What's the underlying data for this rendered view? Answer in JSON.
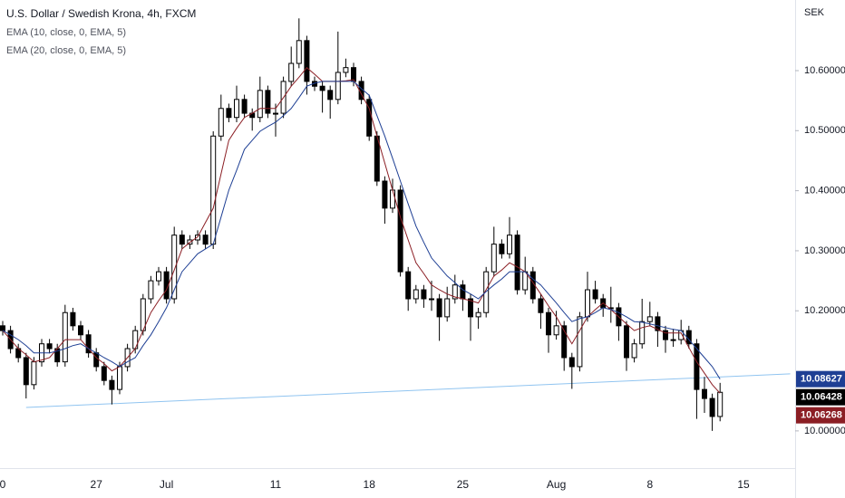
{
  "chart_data": {
    "type": "candlestick",
    "title": "U.S. Dollar / Swedish Krona, 4h, FXCM",
    "currency": "SEK",
    "up_color": "#ffffff",
    "down_color": "#000000",
    "wick_color": "#000000",
    "close_label_color": "#000000",
    "categories": [
      "0",
      null,
      null,
      null,
      null,
      null,
      null,
      null,
      null,
      null,
      null,
      null,
      "27",
      null,
      null,
      null,
      null,
      null,
      null,
      null,
      null,
      "Jul",
      null,
      null,
      null,
      null,
      null,
      null,
      null,
      null,
      null,
      null,
      null,
      null,
      null,
      "11",
      null,
      null,
      null,
      null,
      null,
      null,
      null,
      null,
      null,
      null,
      null,
      "18",
      null,
      null,
      null,
      null,
      null,
      null,
      null,
      null,
      null,
      null,
      null,
      "25",
      null,
      null,
      null,
      null,
      null,
      null,
      null,
      null,
      null,
      null,
      null,
      "Aug",
      null,
      null,
      null,
      null,
      null,
      null,
      null,
      null,
      null,
      null,
      null,
      "8",
      null,
      null,
      null,
      null,
      null,
      null,
      null,
      null,
      null,
      null,
      null,
      "15",
      null,
      null,
      null,
      null,
      null,
      null
    ],
    "open": [
      10.175,
      10.167,
      10.137,
      10.122,
      10.077,
      10.115,
      10.145,
      10.137,
      10.115,
      10.197,
      10.175,
      10.16,
      10.13,
      10.107,
      10.084,
      10.069,
      10.107,
      10.137,
      10.167,
      10.22,
      10.25,
      10.265,
      10.22,
      10.326,
      10.311,
      10.318,
      10.326,
      10.311,
      10.491,
      10.537,
      10.522,
      10.552,
      10.529,
      10.522,
      10.567,
      10.529,
      10.529,
      10.582,
      10.612,
      10.65,
      10.582,
      10.574,
      10.567,
      10.552,
      10.597,
      10.605,
      10.582,
      10.552,
      10.491,
      10.416,
      10.371,
      10.401,
      10.265,
      10.22,
      10.235,
      10.22,
      10.22,
      10.19,
      10.22,
      10.243,
      10.22,
      10.19,
      10.197,
      10.265,
      10.311,
      10.295,
      10.326,
      10.235,
      10.265,
      10.22,
      10.197,
      10.16,
      10.175,
      10.122,
      10.107,
      10.19,
      10.235,
      10.22,
      10.205,
      10.205,
      10.175,
      10.122,
      10.145,
      10.182,
      10.19,
      10.167,
      10.152,
      10.152,
      10.167,
      10.145,
      10.069,
      10.054,
      10.024,
      null,
      null,
      null,
      null,
      null,
      null,
      null,
      null,
      null
    ],
    "high": [
      10.183,
      10.175,
      10.145,
      10.13,
      10.123,
      10.153,
      10.153,
      10.145,
      10.21,
      10.205,
      10.183,
      10.168,
      10.138,
      10.115,
      10.092,
      10.115,
      10.145,
      10.175,
      10.228,
      10.258,
      10.273,
      10.273,
      10.34,
      10.334,
      10.326,
      10.334,
      10.334,
      10.499,
      10.56,
      10.545,
      10.575,
      10.56,
      10.537,
      10.59,
      10.575,
      10.545,
      10.59,
      10.64,
      10.687,
      10.658,
      10.59,
      10.582,
      10.575,
      10.665,
      10.62,
      10.613,
      10.59,
      10.56,
      10.499,
      10.424,
      10.42,
      10.409,
      10.273,
      10.243,
      10.243,
      10.25,
      10.228,
      10.24,
      10.26,
      10.251,
      10.228,
      10.205,
      10.273,
      10.34,
      10.319,
      10.356,
      10.334,
      10.29,
      10.273,
      10.228,
      10.205,
      10.2,
      10.183,
      10.13,
      10.198,
      10.265,
      10.25,
      10.228,
      10.24,
      10.213,
      10.183,
      10.153,
      10.22,
      10.215,
      10.198,
      10.175,
      10.17,
      10.185,
      10.175,
      10.153,
      10.09,
      10.062,
      10.08,
      null,
      null,
      null,
      null,
      null,
      null,
      null,
      null,
      null
    ],
    "low": [
      10.159,
      10.129,
      10.114,
      10.054,
      10.069,
      10.107,
      10.129,
      10.107,
      10.107,
      10.167,
      10.152,
      10.122,
      10.099,
      10.076,
      10.044,
      10.061,
      10.099,
      10.129,
      10.159,
      10.212,
      10.242,
      10.212,
      10.212,
      10.303,
      10.303,
      10.31,
      10.303,
      10.303,
      10.483,
      10.514,
      10.514,
      10.521,
      10.5,
      10.514,
      10.521,
      10.49,
      10.521,
      10.574,
      10.604,
      10.56,
      10.566,
      10.53,
      10.52,
      10.544,
      10.589,
      10.574,
      10.544,
      10.483,
      10.408,
      10.345,
      10.363,
      10.257,
      10.2,
      10.212,
      10.205,
      10.2,
      10.15,
      10.182,
      10.212,
      10.2,
      10.15,
      10.17,
      10.189,
      10.257,
      10.287,
      10.287,
      10.227,
      10.227,
      10.212,
      10.17,
      10.13,
      10.152,
      10.1,
      10.07,
      10.099,
      10.182,
      10.212,
      10.19,
      10.18,
      10.15,
      10.1,
      10.114,
      10.137,
      10.174,
      10.14,
      10.13,
      10.14,
      10.144,
      10.137,
      10.02,
      10.03,
      10.0,
      10.016,
      null,
      null,
      null,
      null,
      null,
      null,
      null,
      null,
      null
    ],
    "close": [
      10.167,
      10.137,
      10.122,
      10.077,
      10.115,
      10.145,
      10.137,
      10.115,
      10.197,
      10.175,
      10.16,
      10.13,
      10.107,
      10.084,
      10.069,
      10.107,
      10.137,
      10.167,
      10.22,
      10.25,
      10.265,
      10.22,
      10.326,
      10.311,
      10.318,
      10.326,
      10.311,
      10.491,
      10.537,
      10.522,
      10.552,
      10.529,
      10.522,
      10.567,
      10.529,
      10.529,
      10.582,
      10.612,
      10.65,
      10.582,
      10.574,
      10.567,
      10.552,
      10.597,
      10.605,
      10.582,
      10.552,
      10.491,
      10.416,
      10.371,
      10.401,
      10.265,
      10.22,
      10.235,
      10.22,
      10.22,
      10.19,
      10.22,
      10.243,
      10.22,
      10.19,
      10.197,
      10.265,
      10.311,
      10.295,
      10.326,
      10.235,
      10.265,
      10.22,
      10.197,
      10.16,
      10.175,
      10.122,
      10.107,
      10.19,
      10.235,
      10.22,
      10.205,
      10.205,
      10.175,
      10.122,
      10.145,
      10.182,
      10.19,
      10.167,
      10.152,
      10.152,
      10.167,
      10.145,
      10.069,
      10.054,
      10.024,
      10.06428,
      null,
      null,
      null,
      null,
      null,
      null,
      null,
      null,
      null
    ],
    "series": [
      {
        "name": "EMA (10, close, 0, EMA, 5)",
        "color": "#8b1e24",
        "values": [
          10.167,
          10.152,
          10.137,
          10.127,
          10.115,
          10.118,
          10.122,
          10.137,
          10.152,
          10.152,
          10.152,
          10.137,
          10.122,
          10.112,
          10.1,
          10.107,
          10.122,
          10.137,
          10.167,
          10.197,
          10.217,
          10.235,
          10.268,
          10.303,
          10.314,
          10.323,
          10.347,
          10.371,
          10.428,
          10.484,
          10.504,
          10.522,
          10.529,
          10.537,
          10.537,
          10.537,
          10.555,
          10.574,
          10.589,
          10.605,
          10.594,
          10.582,
          10.582,
          10.582,
          10.583,
          10.585,
          10.561,
          10.537,
          10.491,
          10.446,
          10.401,
          10.356,
          10.318,
          10.28,
          10.262,
          10.243,
          10.235,
          10.228,
          10.223,
          10.22,
          10.217,
          10.213,
          10.235,
          10.258,
          10.268,
          10.28,
          10.273,
          10.265,
          10.247,
          10.228,
          10.208,
          10.19,
          10.167,
          10.145,
          10.167,
          10.19,
          10.202,
          10.213,
          10.202,
          10.19,
          10.178,
          10.167,
          10.172,
          10.175,
          10.169,
          10.163,
          10.163,
          10.163,
          10.139,
          10.115,
          10.096,
          10.077,
          10.06268,
          null,
          null,
          null,
          null,
          null,
          null,
          null,
          null,
          null
        ]
      },
      {
        "name": "EMA (20, close, 0, EMA, 5)",
        "color": "#1e3f94",
        "values": [
          10.167,
          10.16,
          10.152,
          10.142,
          10.13,
          10.13,
          10.13,
          10.133,
          10.137,
          10.142,
          10.145,
          10.137,
          10.13,
          10.122,
          10.115,
          10.107,
          10.115,
          10.122,
          10.142,
          10.16,
          10.182,
          10.205,
          10.235,
          10.265,
          10.28,
          10.295,
          10.303,
          10.311,
          10.356,
          10.401,
          10.434,
          10.469,
          10.484,
          10.499,
          10.507,
          10.514,
          10.525,
          10.537,
          10.555,
          10.574,
          10.579,
          10.582,
          10.582,
          10.582,
          10.582,
          10.582,
          10.57,
          10.559,
          10.525,
          10.491,
          10.454,
          10.416,
          10.378,
          10.341,
          10.314,
          10.288,
          10.273,
          10.258,
          10.247,
          10.235,
          10.228,
          10.22,
          10.232,
          10.243,
          10.253,
          10.265,
          10.265,
          10.265,
          10.253,
          10.243,
          10.228,
          10.213,
          10.197,
          10.182,
          10.187,
          10.19,
          10.197,
          10.205,
          10.202,
          10.197,
          10.19,
          10.182,
          10.181,
          10.178,
          10.175,
          10.172,
          10.169,
          10.167,
          10.152,
          10.137,
          10.122,
          10.107,
          10.08627,
          null,
          null,
          null,
          null,
          null,
          null,
          null,
          null,
          null
        ]
      }
    ],
    "trendline": {
      "x": [
        3,
        101
      ],
      "values": [
        10.039,
        10.095
      ],
      "color": "#90c4f0"
    },
    "ylim": [
      9.938,
      10.7176
    ],
    "yticks": [
      {
        "value": 10.0,
        "label": "10.00000"
      },
      {
        "value": 10.2,
        "label": "10.20000"
      },
      {
        "value": 10.3,
        "label": "10.30000"
      },
      {
        "value": 10.4,
        "label": "10.40000"
      },
      {
        "value": 10.5,
        "label": "10.50000"
      },
      {
        "value": 10.6,
        "label": "10.60000"
      }
    ]
  }
}
